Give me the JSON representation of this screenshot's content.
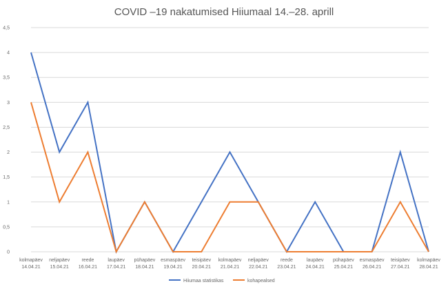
{
  "chart_data": {
    "type": "line",
    "title": "COVID –19 nakatumised Hiiumaal 14.–28. aprill",
    "categories": [
      {
        "day": "kolmapäev",
        "date": "14.04.21"
      },
      {
        "day": "neljapäev",
        "date": "15.04.21"
      },
      {
        "day": "reede",
        "date": "16.04.21"
      },
      {
        "day": "laupäev",
        "date": "17.04.21"
      },
      {
        "day": "pühapäev",
        "date": "18.04.21"
      },
      {
        "day": "esmaspäev",
        "date": "19.04.21"
      },
      {
        "day": "teisipäev",
        "date": "20.04.21"
      },
      {
        "day": "kolmapäev",
        "date": "21.04.21"
      },
      {
        "day": "neljapäev",
        "date": "22.04.21"
      },
      {
        "day": "reede",
        "date": "23.04.21"
      },
      {
        "day": "laupäev",
        "date": "24.04.21"
      },
      {
        "day": "pühapäev",
        "date": "25.04.21"
      },
      {
        "day": "esmaspäev",
        "date": "26.04.21"
      },
      {
        "day": "teisipäev",
        "date": "27.04.21"
      },
      {
        "day": "kolmapäev",
        "date": "28.04.21"
      }
    ],
    "series": [
      {
        "name": "Hiiumaa statistikas",
        "color": "#4472C4",
        "values": [
          4,
          2,
          3,
          0,
          1,
          0,
          1,
          2,
          1,
          0,
          1,
          0,
          0,
          2,
          0
        ]
      },
      {
        "name": "kohapealsed",
        "color": "#ED7D31",
        "values": [
          3,
          1,
          2,
          0,
          1,
          0,
          0,
          1,
          1,
          0,
          0,
          0,
          0,
          1,
          0
        ]
      }
    ],
    "ylim": [
      0,
      4.5
    ],
    "yticks": [
      "0",
      "0,5",
      "1",
      "1,5",
      "2",
      "2,5",
      "3",
      "3,5",
      "4",
      "4,5"
    ],
    "grid": true,
    "legend": "bottom"
  }
}
